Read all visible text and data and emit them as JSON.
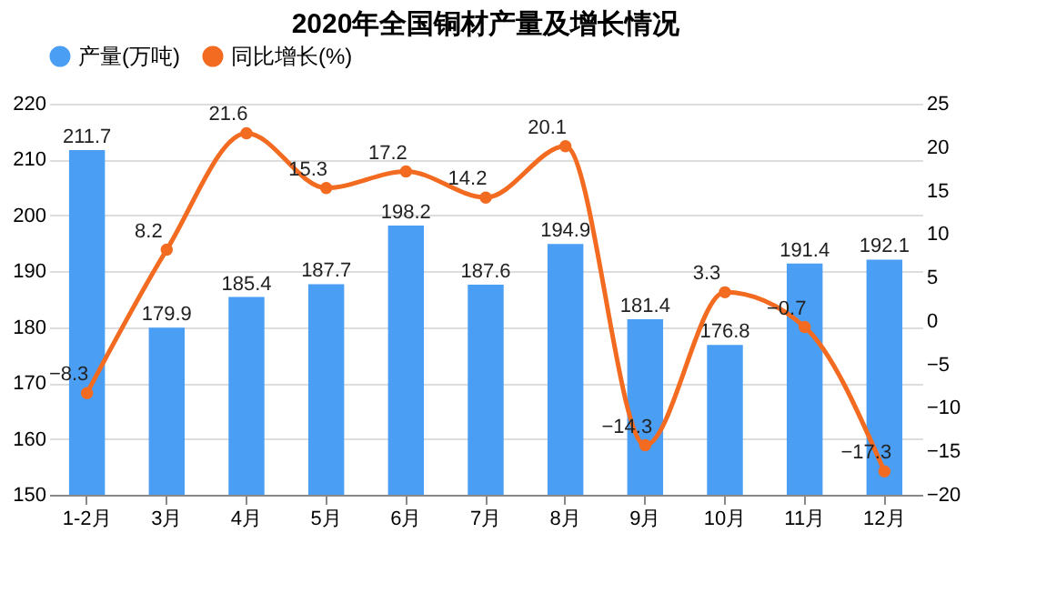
{
  "chart_data": {
    "type": "bar",
    "title": "2020年全国铜材产量及增长情况",
    "categories": [
      "1-2月",
      "3月",
      "4月",
      "5月",
      "6月",
      "7月",
      "8月",
      "9月",
      "10月",
      "11月",
      "12月"
    ],
    "series": [
      {
        "name": "产量(万吨)",
        "color": "#4a9ff5",
        "values": [
          211.7,
          179.9,
          185.4,
          187.7,
          198.2,
          187.6,
          194.9,
          181.4,
          176.8,
          191.4,
          192.1
        ]
      },
      {
        "name": "同比增长(%)",
        "type": "line",
        "axis": "y2",
        "color": "#f26b21",
        "values": [
          -8.3,
          8.2,
          21.6,
          15.3,
          17.2,
          14.2,
          20.1,
          -14.3,
          3.3,
          -0.7,
          -17.3
        ]
      }
    ],
    "ylim": [
      150,
      220
    ],
    "yticks": [
      150,
      160,
      170,
      180,
      190,
      200,
      210,
      220
    ],
    "y2lim": [
      -20,
      25
    ],
    "y2ticks": [
      -20,
      -15,
      -10,
      -5,
      0,
      5,
      10,
      15,
      20,
      25
    ],
    "grid": "y",
    "legend": "top",
    "marker": "circle",
    "line_style": "solid",
    "data_labels": true
  }
}
